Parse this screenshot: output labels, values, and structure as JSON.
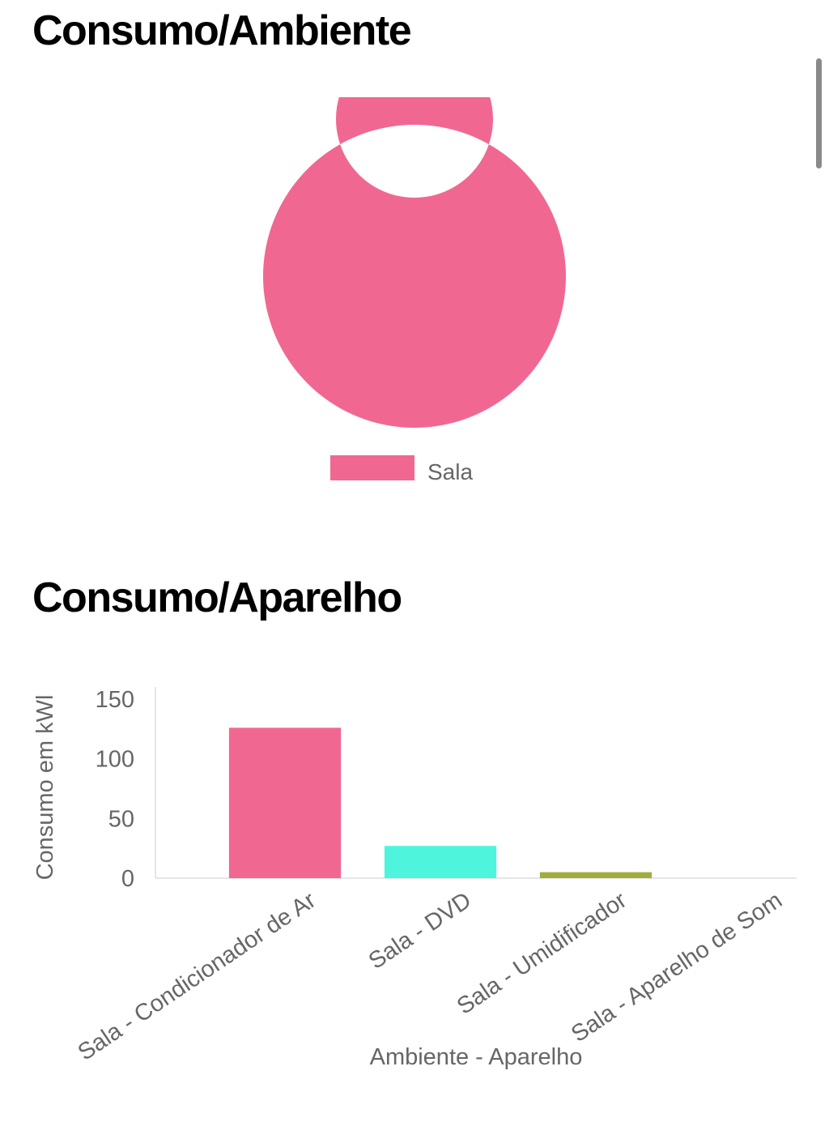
{
  "sections": {
    "ambiente_title": "Consumo/Ambiente",
    "aparelho_title": "Consumo/Aparelho"
  },
  "chart_data": [
    {
      "type": "pie",
      "variant": "doughnut",
      "labels": [
        "Sala"
      ],
      "values": [
        100
      ],
      "colors": [
        "#f06892"
      ],
      "legend": "bottom"
    },
    {
      "type": "bar",
      "categories": [
        "Sala - Condicionador de Ar",
        "Sala - DVD",
        "Sala - Umidificador",
        "Sala - Aparelho de Som"
      ],
      "values": [
        126,
        27,
        5,
        0
      ],
      "colors": [
        "#f06892",
        "#4ef5dc",
        "#a2ac3e",
        "#d3d3d3"
      ],
      "xlabel": "Ambiente - Aparelho",
      "ylabel": "Consumo em kWl",
      "ylim": [
        0,
        160
      ],
      "yticks": [
        0,
        50,
        100,
        150
      ],
      "grid": false,
      "legend": "none"
    }
  ]
}
